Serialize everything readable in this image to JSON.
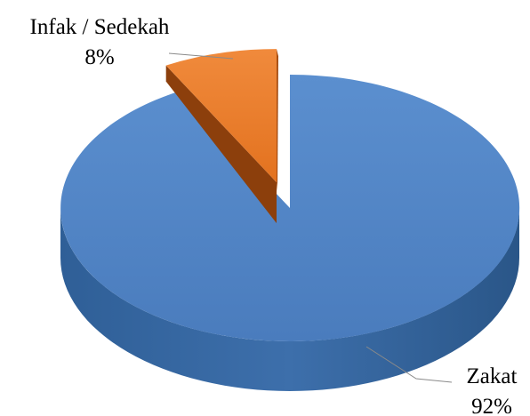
{
  "chart_data": {
    "type": "pie",
    "style": "3d-exploded",
    "slices": [
      {
        "name": "Zakat",
        "value": 92,
        "value_label": "92%",
        "color": "#4F81BD"
      },
      {
        "name": "Infak / Sedekah",
        "value": 8,
        "value_label": "8%",
        "color": "#ED7D31"
      }
    ],
    "legend": "none",
    "data_labels": "outside-with-leader-lines"
  }
}
